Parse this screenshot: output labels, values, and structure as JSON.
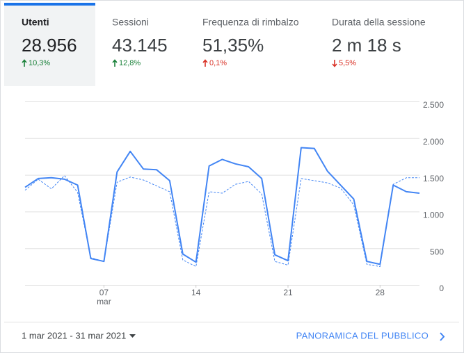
{
  "tabs": [
    {
      "label": "Utenti",
      "value": "28.956",
      "change": "10,3%",
      "trend": "up",
      "color": "#188038"
    },
    {
      "label": "Sessioni",
      "value": "43.145",
      "change": "12,8%",
      "trend": "up",
      "color": "#188038"
    },
    {
      "label": "Frequenza di rimbalzo",
      "value": "51,35%",
      "change": "0,1%",
      "trend": "up",
      "color": "#d93025"
    },
    {
      "label": "Durata della sessione",
      "value": "2 m 18 s",
      "change": "5,5%",
      "trend": "down",
      "color": "#d93025"
    }
  ],
  "selected_tab": 0,
  "footer": {
    "date_range": "1 mar 2021 - 31 mar 2021",
    "link": "PANORAMICA DEL PUBBLICO"
  },
  "chart_data": {
    "type": "line",
    "categories": [
      null,
      null,
      null,
      null,
      null,
      null,
      "07",
      null,
      null,
      null,
      null,
      null,
      null,
      "14",
      null,
      null,
      null,
      null,
      null,
      null,
      "21",
      null,
      null,
      null,
      null,
      null,
      null,
      "28",
      null,
      null,
      null
    ],
    "x_month_label": "mar",
    "series": [
      {
        "color": "#4285f4",
        "dashed": false,
        "values": [
          1330,
          1450,
          1460,
          1440,
          1360,
          360,
          320,
          1540,
          1820,
          1580,
          1570,
          1420,
          420,
          310,
          1620,
          1710,
          1650,
          1610,
          1450,
          410,
          330,
          1870,
          1860,
          1550,
          1360,
          1170,
          320,
          280,
          1360,
          1270,
          1250
        ]
      },
      {
        "color": "#4285f4",
        "dashed": true,
        "values": [
          1290,
          1440,
          1310,
          1490,
          1260,
          370,
          320,
          1400,
          1470,
          1430,
          1350,
          1270,
          340,
          250,
          1270,
          1250,
          1370,
          1410,
          1240,
          320,
          270,
          1450,
          1420,
          1390,
          1320,
          1090,
          280,
          250,
          1370,
          1460,
          1460
        ]
      }
    ],
    "ylim": [
      0,
      2500
    ],
    "yticks": [
      0,
      500,
      {
        "value": 1000,
        "label": "1.000"
      },
      {
        "value": 1500,
        "label": "1.500"
      },
      {
        "value": 2000,
        "label": "2.000"
      },
      {
        "value": 2500,
        "label": "2.500"
      }
    ],
    "y_axis_side": "right",
    "grid": true
  }
}
